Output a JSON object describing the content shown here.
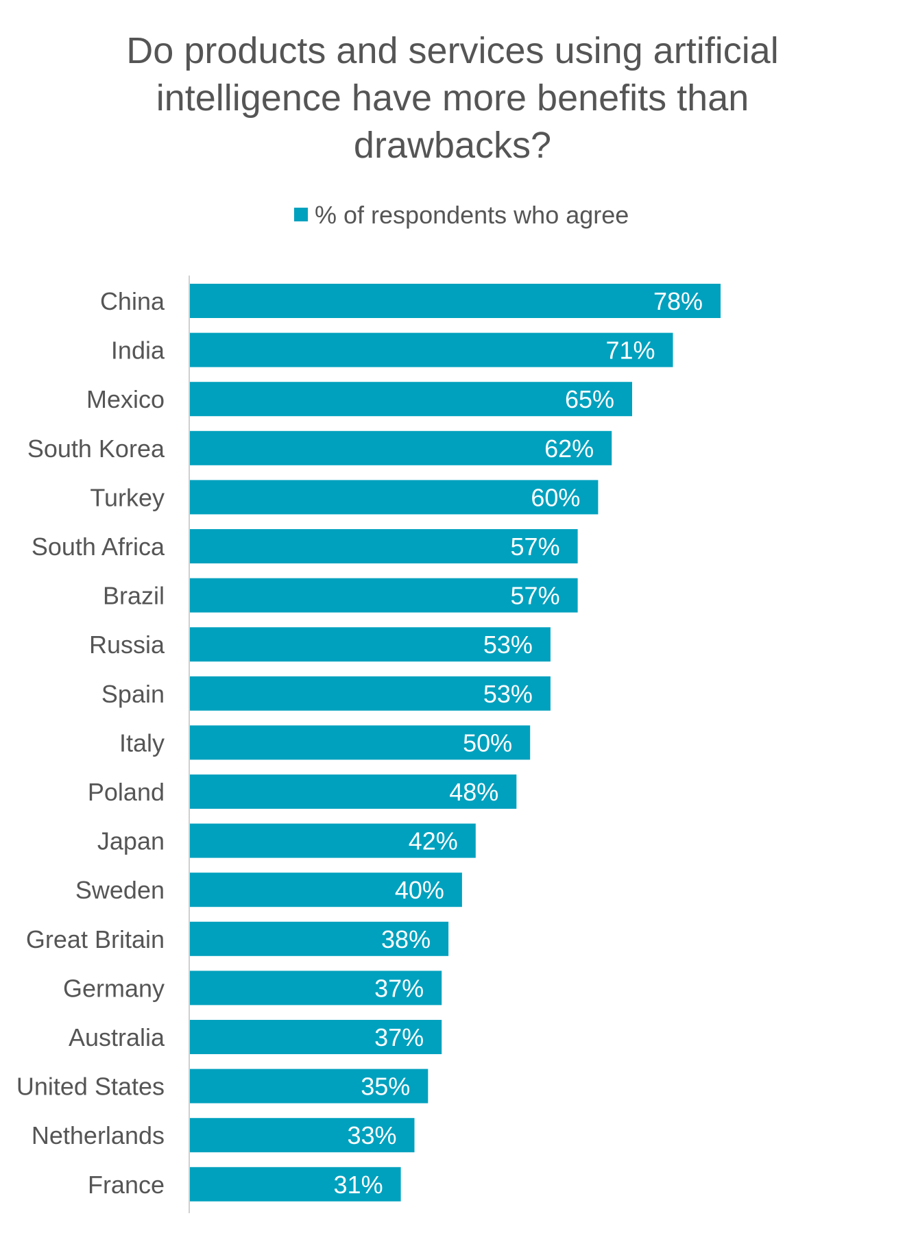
{
  "chart_data": {
    "type": "bar",
    "orientation": "horizontal",
    "title_lines": [
      "Do products and services using artificial",
      "intelligence have more benefits than",
      "drawbacks?"
    ],
    "legend_position": "top",
    "grid": false,
    "categories": [
      "China",
      "India",
      "Mexico",
      "South Korea",
      "Turkey",
      "South Africa",
      "Brazil",
      "Russia",
      "Spain",
      "Italy",
      "Poland",
      "Japan",
      "Sweden",
      "Great Britain",
      "Germany",
      "Australia",
      "United States",
      "Netherlands",
      "France"
    ],
    "series": [
      {
        "name": "% of respondents who agree",
        "color": "#00A1BE",
        "values": [
          78,
          71,
          65,
          62,
          60,
          57,
          57,
          53,
          53,
          50,
          48,
          42,
          40,
          38,
          37,
          37,
          35,
          33,
          31
        ],
        "data_labels": [
          "78%",
          "71%",
          "65%",
          "62%",
          "60%",
          "57%",
          "57%",
          "53%",
          "53%",
          "50%",
          "48%",
          "42%",
          "40%",
          "38%",
          "37%",
          "37%",
          "35%",
          "33%",
          "31%"
        ]
      }
    ],
    "xlim": [
      0,
      100
    ]
  },
  "colors": {
    "bar": "#00A1BE",
    "text": "#555555",
    "axis_line": "#D0D0D0",
    "value_text": "#FFFFFF"
  }
}
